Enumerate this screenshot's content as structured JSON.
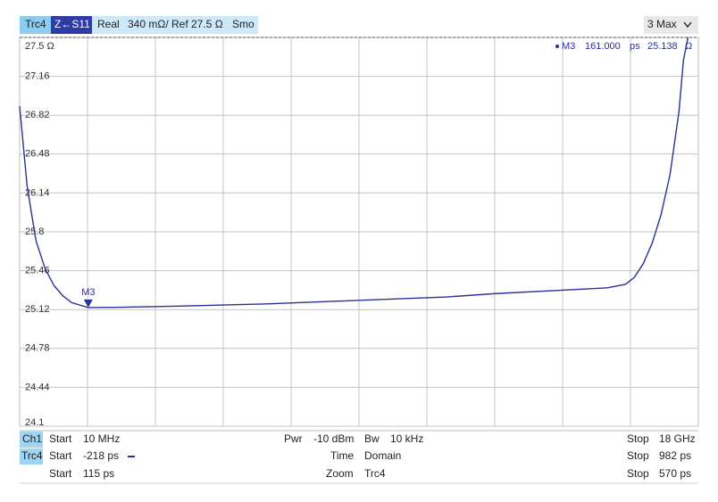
{
  "header": {
    "parameter": "Z←S11",
    "format": "Real",
    "scale": "340 mΩ/ Ref 27.5 Ω",
    "smoothing": "Smo",
    "max_button": "3 Max"
  },
  "chart_data": {
    "type": "line",
    "x": [
      115,
      120,
      126,
      132,
      138,
      144,
      150,
      161,
      180,
      222,
      281,
      341,
      401,
      434,
      479,
      509,
      521,
      527,
      533,
      539,
      545,
      551,
      557,
      560,
      563
    ],
    "series": [
      {
        "name": "Trc4",
        "color": "#2c3196",
        "values": [
          26.9,
          26.2,
          25.72,
          25.48,
          25.33,
          25.24,
          25.18,
          25.138,
          25.14,
          25.15,
          25.17,
          25.2,
          25.23,
          25.26,
          25.29,
          25.31,
          25.34,
          25.4,
          25.52,
          25.7,
          25.95,
          26.3,
          26.85,
          27.3,
          27.5
        ]
      }
    ],
    "xlim": [
      115,
      570
    ],
    "ylim": [
      24.1,
      27.5
    ],
    "yticks": [
      24.1,
      24.44,
      24.78,
      25.12,
      25.46,
      25.8,
      26.14,
      26.48,
      26.82,
      27.16,
      {
        "value": 27.5,
        "label": "27.5 Ω"
      }
    ],
    "grid": true,
    "marker": {
      "label": "M3",
      "x": 161,
      "x_label": "161.000",
      "x_unit": "ps",
      "y": 25.138,
      "y_unit": "Ω",
      "color": "#2c3196"
    }
  },
  "footer": {
    "rows": [
      [
        "Ch1",
        "Start",
        "10 MHz",
        "Pwr",
        "-10 dBm",
        "Bw",
        "10 kHz",
        "Stop",
        "18 GHz"
      ],
      [
        "Trc4",
        "Start",
        "-218 ps",
        "Time",
        "Domain",
        "Stop",
        "982 ps"
      ],
      [
        "Start",
        "115 ps",
        "Zoom",
        "Trc4",
        "Stop",
        "570 ps"
      ]
    ]
  }
}
